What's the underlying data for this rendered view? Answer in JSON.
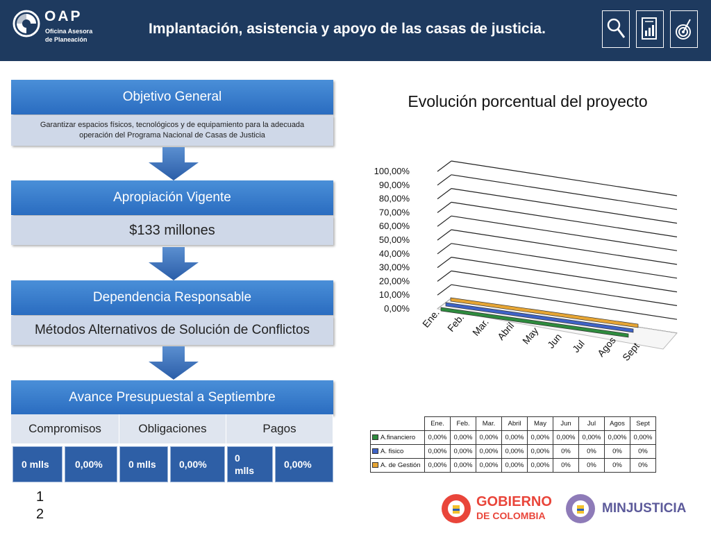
{
  "header": {
    "logo_title": "OAP",
    "logo_sub_line1": "Oficina Asesora",
    "logo_sub_line2": "de Planeación",
    "title": "Implantación, asistencia y apoyo de las casas de justicia.",
    "icons": [
      "search-document-icon",
      "report-chart-icon",
      "target-icon"
    ]
  },
  "objetivo": {
    "heading": "Objetivo General",
    "text_line1": "Garantizar espacios físicos, tecnológicos y de equipamiento para la adecuada",
    "text_line2": "operación del Programa Nacional de Casas de Justicia"
  },
  "apropiacion": {
    "heading": "Apropiación Vigente",
    "value": "$133 millones"
  },
  "dependencia": {
    "heading": "Dependencia Responsable",
    "value": "Métodos Alternativos de Solución de Conflictos"
  },
  "avance": {
    "heading": "Avance Presupuestal a Septiembre",
    "tabs": [
      "Compromisos",
      "Obligaciones",
      "Pagos"
    ],
    "values": [
      "0 mlls",
      "0,00%",
      "0 mlls",
      "0,00%",
      "0 mlls",
      "0,00%"
    ]
  },
  "page_number": "12",
  "colors": {
    "header_bg": "#1e3a5f",
    "financiero": "#2e8b3e",
    "fisico": "#3f63c6",
    "gestion": "#e6a534"
  },
  "chart_data": {
    "type": "line",
    "title": "Evolución porcentual del proyecto",
    "categories": [
      "Ene.",
      "Feb.",
      "Mar.",
      "Abril",
      "May",
      "Jun",
      "Jul",
      "Agos",
      "Sept"
    ],
    "y_ticks": [
      "100,00%",
      "90,00%",
      "80,00%",
      "70,00%",
      "60,00%",
      "50,00%",
      "40,00%",
      "30,00%",
      "20,00%",
      "10,00%",
      "0,00%"
    ],
    "ylim": [
      0,
      100
    ],
    "grid": true,
    "series": [
      {
        "name": "A.financiero",
        "values": [
          0,
          0,
          0,
          0,
          0,
          0,
          0,
          0,
          0
        ],
        "labels": [
          "0,00%",
          "0,00%",
          "0,00%",
          "0,00%",
          "0,00%",
          "0,00%",
          "0,00%",
          "0,00%",
          "0,00%"
        ]
      },
      {
        "name": "A. fisico",
        "values": [
          0,
          0,
          0,
          0,
          0,
          0,
          0,
          0,
          0
        ],
        "labels": [
          "0,00%",
          "0,00%",
          "0,00%",
          "0,00%",
          "0,00%",
          "0%",
          "0%",
          "0%",
          "0%"
        ]
      },
      {
        "name": "A. de Gestión",
        "values": [
          0,
          0,
          0,
          0,
          0,
          0,
          0,
          0,
          0
        ],
        "labels": [
          "0,00%",
          "0,00%",
          "0,00%",
          "0,00%",
          "0,00%",
          "0%",
          "0%",
          "0%",
          "0%"
        ]
      }
    ]
  },
  "footer": {
    "gobierno_line1": "GOBIERNO",
    "gobierno_line2": "DE COLOMBIA",
    "minjusticia": "MINJUSTICIA"
  }
}
